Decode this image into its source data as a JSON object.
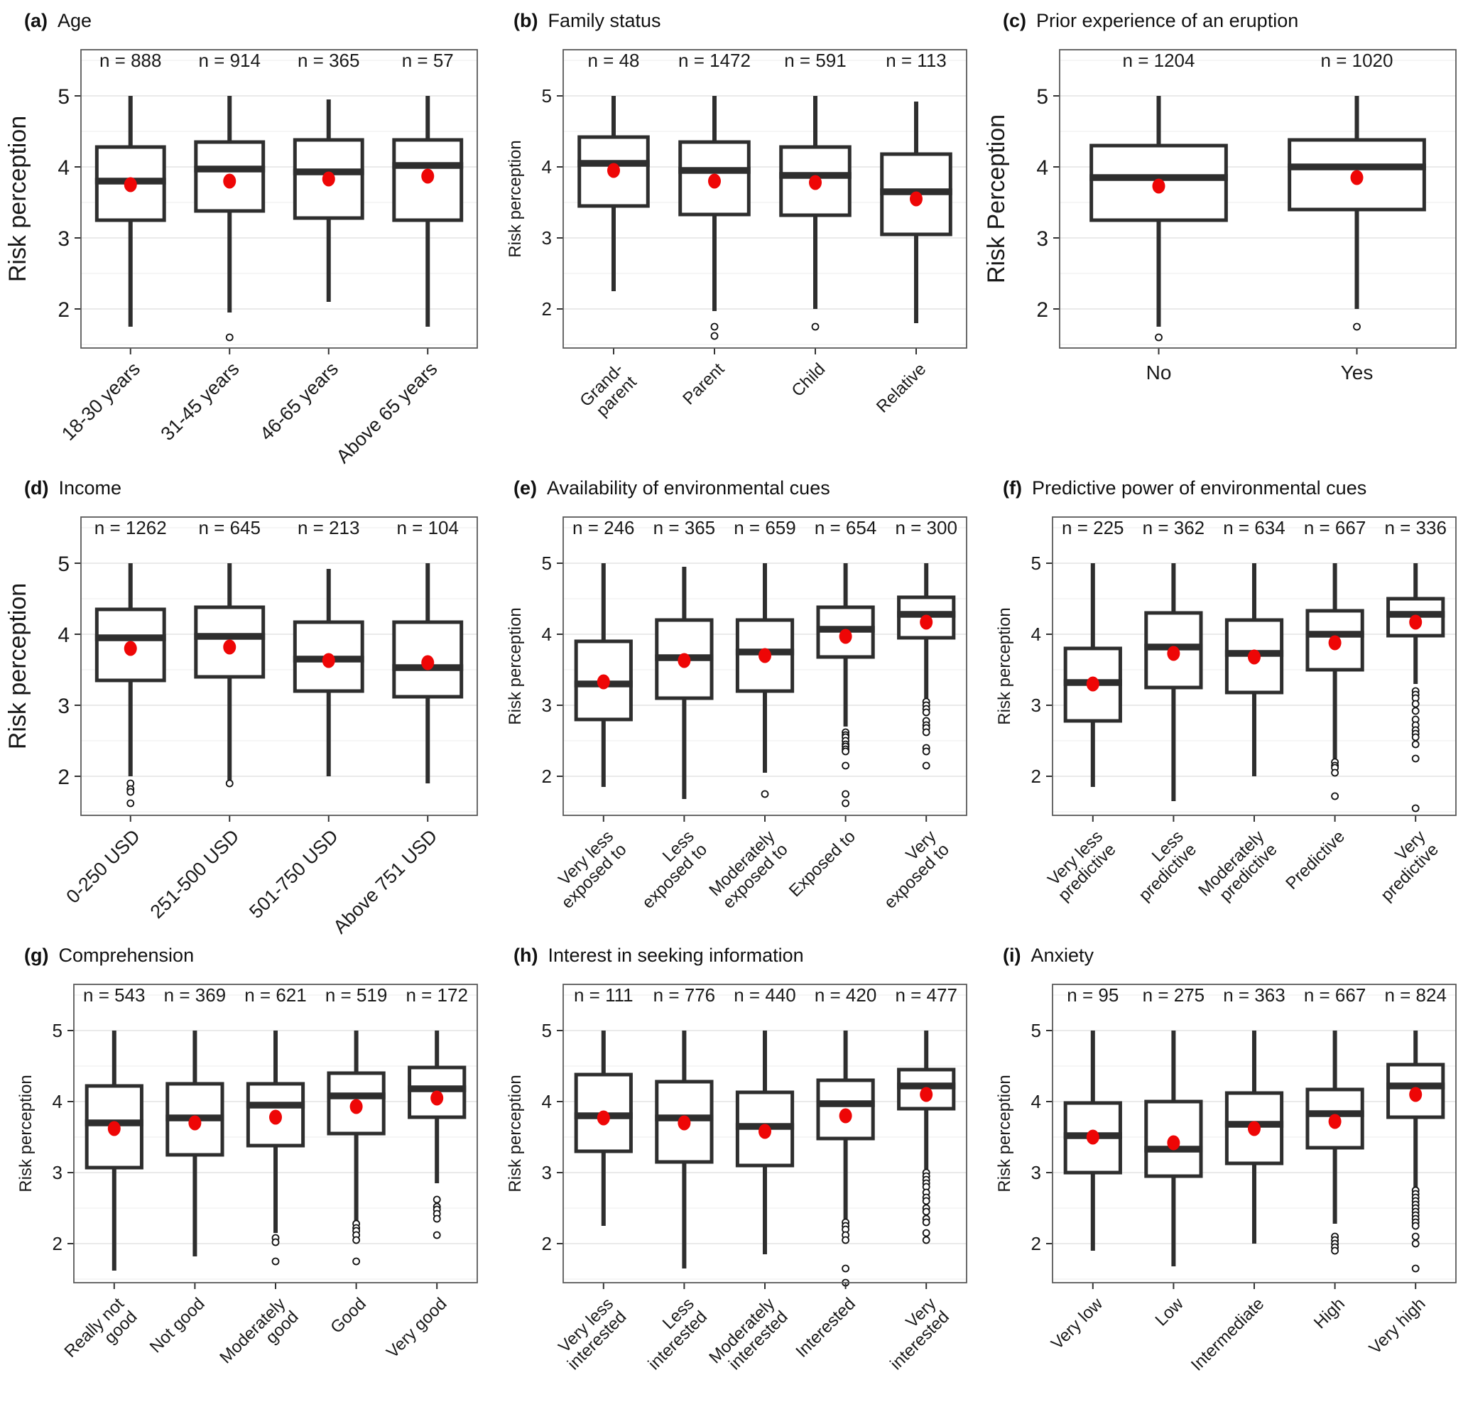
{
  "figure": {
    "background": "#ffffff",
    "box_stroke_color": "#2e2e2e",
    "mean_dot_color": "#ee0606",
    "outlier_stroke_color": "#111111",
    "grid_major_color": "#e3e3e3",
    "grid_minor_color": "#f1f1f1",
    "panel_border_color": "#595959",
    "ylim": [
      1.45,
      5.65
    ],
    "yticks": [
      2,
      3,
      4,
      5
    ]
  },
  "chart_data": [
    {
      "type": "boxplot",
      "panel_label": "(a)",
      "title": "Age",
      "ylabel": "Risk perception",
      "categories": [
        "18-30 years",
        "31-45 years",
        "46-65 years",
        "Above 65 years"
      ],
      "n_labels": [
        "n = 888",
        "n = 914",
        "n = 365",
        "n = 57"
      ],
      "boxes": [
        {
          "whisker_low": 1.75,
          "q1": 3.25,
          "median": 3.8,
          "q3": 4.28,
          "whisker_high": 5.0,
          "mean": 3.75,
          "outliers": []
        },
        {
          "whisker_low": 1.95,
          "q1": 3.38,
          "median": 3.97,
          "q3": 4.35,
          "whisker_high": 5.0,
          "mean": 3.8,
          "outliers": [
            1.6
          ]
        },
        {
          "whisker_low": 2.1,
          "q1": 3.28,
          "median": 3.93,
          "q3": 4.38,
          "whisker_high": 4.95,
          "mean": 3.83,
          "outliers": []
        },
        {
          "whisker_low": 1.75,
          "q1": 3.25,
          "median": 4.02,
          "q3": 4.38,
          "whisker_high": 5.0,
          "mean": 3.87,
          "outliers": []
        }
      ]
    },
    {
      "type": "boxplot",
      "panel_label": "(b)",
      "title": "Family status",
      "ylabel": "Risk perception",
      "categories": [
        "Grand-\nparent",
        "Parent",
        "Child",
        "Relative"
      ],
      "n_labels": [
        "n = 48",
        "n = 1472",
        "n = 591",
        "n = 113"
      ],
      "boxes": [
        {
          "whisker_low": 2.25,
          "q1": 3.45,
          "median": 4.05,
          "q3": 4.42,
          "whisker_high": 5.0,
          "mean": 3.95,
          "outliers": []
        },
        {
          "whisker_low": 1.97,
          "q1": 3.33,
          "median": 3.95,
          "q3": 4.35,
          "whisker_high": 5.0,
          "mean": 3.8,
          "outliers": [
            1.75,
            1.62
          ]
        },
        {
          "whisker_low": 2.0,
          "q1": 3.32,
          "median": 3.88,
          "q3": 4.28,
          "whisker_high": 5.0,
          "mean": 3.78,
          "outliers": [
            1.75
          ]
        },
        {
          "whisker_low": 1.8,
          "q1": 3.05,
          "median": 3.65,
          "q3": 4.18,
          "whisker_high": 4.92,
          "mean": 3.55,
          "outliers": []
        }
      ]
    },
    {
      "type": "boxplot",
      "panel_label": "(c)",
      "title": "Prior experience of an eruption",
      "ylabel": "Risk Perception",
      "categories": [
        "No",
        "Yes"
      ],
      "n_labels": [
        "n = 1204",
        "n = 1020"
      ],
      "boxes": [
        {
          "whisker_low": 1.75,
          "q1": 3.25,
          "median": 3.85,
          "q3": 4.3,
          "whisker_high": 5.0,
          "mean": 3.73,
          "outliers": [
            1.6
          ]
        },
        {
          "whisker_low": 2.0,
          "q1": 3.4,
          "median": 4.0,
          "q3": 4.38,
          "whisker_high": 5.0,
          "mean": 3.85,
          "outliers": [
            1.75
          ]
        }
      ]
    },
    {
      "type": "boxplot",
      "panel_label": "(d)",
      "title": "Income",
      "ylabel": "Risk perception",
      "categories": [
        "0-250 USD",
        "251-500 USD",
        "501-750 USD",
        "Above 751 USD"
      ],
      "n_labels": [
        "n = 1262",
        "n = 645",
        "n = 213",
        "n = 104"
      ],
      "boxes": [
        {
          "whisker_low": 2.0,
          "q1": 3.35,
          "median": 3.95,
          "q3": 4.35,
          "whisker_high": 5.0,
          "mean": 3.8,
          "outliers": [
            1.9,
            1.82,
            1.78,
            1.62
          ]
        },
        {
          "whisker_low": 1.95,
          "q1": 3.4,
          "median": 3.97,
          "q3": 4.38,
          "whisker_high": 5.0,
          "mean": 3.82,
          "outliers": [
            1.9
          ]
        },
        {
          "whisker_low": 2.0,
          "q1": 3.2,
          "median": 3.65,
          "q3": 4.17,
          "whisker_high": 4.92,
          "mean": 3.63,
          "outliers": []
        },
        {
          "whisker_low": 1.9,
          "q1": 3.12,
          "median": 3.53,
          "q3": 4.17,
          "whisker_high": 5.0,
          "mean": 3.6,
          "outliers": []
        }
      ]
    },
    {
      "type": "boxplot",
      "panel_label": "(e)",
      "title": "Availability of environmental cues",
      "ylabel": "Risk perception",
      "categories": [
        "Very less\nexposed to",
        "Less\nexposed to",
        "Moderately\nexposed to",
        "Exposed to",
        "Very\nexposed to"
      ],
      "n_labels": [
        "n = 246",
        "n = 365",
        "n = 659",
        "n = 654",
        "n = 300"
      ],
      "boxes": [
        {
          "whisker_low": 1.85,
          "q1": 2.8,
          "median": 3.3,
          "q3": 3.9,
          "whisker_high": 5.0,
          "mean": 3.33,
          "outliers": []
        },
        {
          "whisker_low": 1.68,
          "q1": 3.1,
          "median": 3.67,
          "q3": 4.2,
          "whisker_high": 4.95,
          "mean": 3.63,
          "outliers": []
        },
        {
          "whisker_low": 2.05,
          "q1": 3.2,
          "median": 3.75,
          "q3": 4.2,
          "whisker_high": 5.0,
          "mean": 3.7,
          "outliers": [
            1.75
          ]
        },
        {
          "whisker_low": 2.7,
          "q1": 3.68,
          "median": 4.07,
          "q3": 4.38,
          "whisker_high": 5.0,
          "mean": 3.97,
          "outliers": [
            2.62,
            2.58,
            2.55,
            2.5,
            2.45,
            2.42,
            2.38,
            2.35,
            2.15,
            1.75,
            1.62
          ]
        },
        {
          "whisker_low": 3.1,
          "q1": 3.95,
          "median": 4.28,
          "q3": 4.52,
          "whisker_high": 5.0,
          "mean": 4.17,
          "outliers": [
            3.05,
            3.0,
            2.95,
            2.9,
            2.78,
            2.72,
            2.68,
            2.62,
            2.4,
            2.35,
            2.15
          ]
        }
      ]
    },
    {
      "type": "boxplot",
      "panel_label": "(f)",
      "title": "Predictive power of environmental cues",
      "ylabel": "Risk perception",
      "categories": [
        "Very less\npredictive",
        "Less\npredictive",
        "Moderately\npredictive",
        "Predictive",
        "Very\npredictive"
      ],
      "n_labels": [
        "n = 225",
        "n = 362",
        "n = 634",
        "n = 667",
        "n = 336"
      ],
      "boxes": [
        {
          "whisker_low": 1.85,
          "q1": 2.78,
          "median": 3.32,
          "q3": 3.8,
          "whisker_high": 5.0,
          "mean": 3.3,
          "outliers": []
        },
        {
          "whisker_low": 1.65,
          "q1": 3.25,
          "median": 3.82,
          "q3": 4.3,
          "whisker_high": 5.0,
          "mean": 3.73,
          "outliers": []
        },
        {
          "whisker_low": 2.0,
          "q1": 3.18,
          "median": 3.73,
          "q3": 4.2,
          "whisker_high": 5.0,
          "mean": 3.68,
          "outliers": []
        },
        {
          "whisker_low": 2.25,
          "q1": 3.5,
          "median": 4.0,
          "q3": 4.33,
          "whisker_high": 5.0,
          "mean": 3.88,
          "outliers": [
            2.2,
            2.15,
            2.12,
            2.05,
            1.72
          ]
        },
        {
          "whisker_low": 3.3,
          "q1": 3.98,
          "median": 4.28,
          "q3": 4.5,
          "whisker_high": 5.0,
          "mean": 4.17,
          "outliers": [
            3.2,
            3.15,
            3.1,
            3.02,
            2.92,
            2.8,
            2.72,
            2.65,
            2.6,
            2.55,
            2.45,
            2.25,
            1.55
          ]
        }
      ]
    },
    {
      "type": "boxplot",
      "panel_label": "(g)",
      "title": "Comprehension",
      "ylabel": "Risk perception",
      "categories": [
        "Really not\ngood",
        "Not good",
        "Moderately\ngood",
        "Good",
        "Very good"
      ],
      "n_labels": [
        "n = 543",
        "n = 369",
        "n = 621",
        "n = 519",
        "n = 172"
      ],
      "boxes": [
        {
          "whisker_low": 1.62,
          "q1": 3.07,
          "median": 3.7,
          "q3": 4.22,
          "whisker_high": 5.0,
          "mean": 3.62,
          "outliers": []
        },
        {
          "whisker_low": 1.82,
          "q1": 3.25,
          "median": 3.77,
          "q3": 4.25,
          "whisker_high": 5.0,
          "mean": 3.7,
          "outliers": []
        },
        {
          "whisker_low": 2.15,
          "q1": 3.38,
          "median": 3.95,
          "q3": 4.25,
          "whisker_high": 5.0,
          "mean": 3.78,
          "outliers": [
            2.08,
            2.02,
            1.75
          ]
        },
        {
          "whisker_low": 2.3,
          "q1": 3.55,
          "median": 4.08,
          "q3": 4.4,
          "whisker_high": 5.0,
          "mean": 3.93,
          "outliers": [
            2.28,
            2.22,
            2.18,
            2.12,
            2.05,
            1.75
          ]
        },
        {
          "whisker_low": 2.85,
          "q1": 3.78,
          "median": 4.18,
          "q3": 4.48,
          "whisker_high": 5.0,
          "mean": 4.05,
          "outliers": [
            2.62,
            2.52,
            2.48,
            2.42,
            2.35,
            2.12
          ]
        }
      ]
    },
    {
      "type": "boxplot",
      "panel_label": "(h)",
      "title": "Interest in seeking information",
      "ylabel": "Risk perception",
      "categories": [
        "Very less\ninterested",
        "Less\ninterested",
        "Moderately\ninterested",
        "Interested",
        "Very\ninterested"
      ],
      "n_labels": [
        "n = 111",
        "n = 776",
        "n = 440",
        "n = 420",
        "n = 477"
      ],
      "boxes": [
        {
          "whisker_low": 2.25,
          "q1": 3.3,
          "median": 3.8,
          "q3": 4.38,
          "whisker_high": 5.0,
          "mean": 3.77,
          "outliers": []
        },
        {
          "whisker_low": 1.65,
          "q1": 3.15,
          "median": 3.77,
          "q3": 4.28,
          "whisker_high": 5.0,
          "mean": 3.7,
          "outliers": []
        },
        {
          "whisker_low": 1.85,
          "q1": 3.1,
          "median": 3.65,
          "q3": 4.13,
          "whisker_high": 5.0,
          "mean": 3.58,
          "outliers": []
        },
        {
          "whisker_low": 2.35,
          "q1": 3.48,
          "median": 3.97,
          "q3": 4.3,
          "whisker_high": 5.0,
          "mean": 3.8,
          "outliers": [
            2.3,
            2.25,
            2.2,
            2.12,
            2.05,
            1.65,
            1.45
          ]
        },
        {
          "whisker_low": 3.05,
          "q1": 3.9,
          "median": 4.22,
          "q3": 4.45,
          "whisker_high": 5.0,
          "mean": 4.1,
          "outliers": [
            3.0,
            2.95,
            2.9,
            2.85,
            2.8,
            2.72,
            2.65,
            2.6,
            2.5,
            2.45,
            2.35,
            2.3,
            2.15,
            2.05
          ]
        }
      ]
    },
    {
      "type": "boxplot",
      "panel_label": "(i)",
      "title": "Anxiety",
      "ylabel": "Risk perception",
      "categories": [
        "Very low",
        "Low",
        "Intermediate",
        "High",
        "Very high"
      ],
      "n_labels": [
        "n = 95",
        "n = 275",
        "n = 363",
        "n = 667",
        "n = 824"
      ],
      "boxes": [
        {
          "whisker_low": 1.9,
          "q1": 3.0,
          "median": 3.52,
          "q3": 3.98,
          "whisker_high": 5.0,
          "mean": 3.5,
          "outliers": []
        },
        {
          "whisker_low": 1.68,
          "q1": 2.95,
          "median": 3.33,
          "q3": 4.0,
          "whisker_high": 5.0,
          "mean": 3.42,
          "outliers": []
        },
        {
          "whisker_low": 2.0,
          "q1": 3.13,
          "median": 3.68,
          "q3": 4.12,
          "whisker_high": 5.0,
          "mean": 3.62,
          "outliers": []
        },
        {
          "whisker_low": 2.28,
          "q1": 3.35,
          "median": 3.83,
          "q3": 4.17,
          "whisker_high": 5.0,
          "mean": 3.72,
          "outliers": [
            2.1,
            2.05,
            2.0,
            1.95,
            1.9
          ]
        },
        {
          "whisker_low": 2.78,
          "q1": 3.78,
          "median": 4.22,
          "q3": 4.52,
          "whisker_high": 5.0,
          "mean": 4.1,
          "outliers": [
            2.75,
            2.7,
            2.65,
            2.6,
            2.55,
            2.5,
            2.45,
            2.4,
            2.35,
            2.3,
            2.25,
            2.1,
            2.0,
            1.65
          ]
        }
      ]
    }
  ]
}
